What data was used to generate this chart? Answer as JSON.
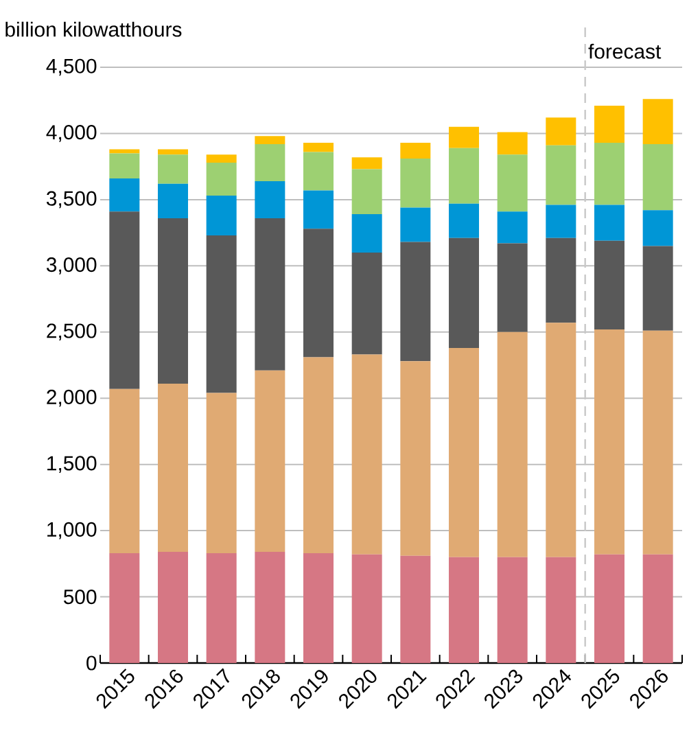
{
  "chart_data": {
    "type": "bar",
    "stacked": true,
    "ylabel": "billion kilowatthours",
    "categories": [
      "2015",
      "2016",
      "2017",
      "2018",
      "2019",
      "2020",
      "2021",
      "2022",
      "2023",
      "2024",
      "2025",
      "2026"
    ],
    "series": [
      {
        "color": "#d67784",
        "values": [
          830,
          840,
          830,
          840,
          830,
          820,
          810,
          800,
          800,
          800,
          820,
          820
        ]
      },
      {
        "color": "#e0aa73",
        "values": [
          1240,
          1270,
          1210,
          1370,
          1480,
          1510,
          1470,
          1580,
          1700,
          1770,
          1700,
          1690
        ]
      },
      {
        "color": "#595959",
        "values": [
          1340,
          1250,
          1190,
          1150,
          970,
          770,
          900,
          830,
          670,
          640,
          670,
          640
        ]
      },
      {
        "color": "#0096d6",
        "values": [
          250,
          260,
          300,
          280,
          290,
          290,
          260,
          260,
          240,
          250,
          270,
          270
        ]
      },
      {
        "color": "#9dd072",
        "values": [
          190,
          220,
          250,
          280,
          290,
          340,
          370,
          420,
          430,
          450,
          470,
          500
        ]
      },
      {
        "color": "#ffc000",
        "values": [
          30,
          40,
          60,
          60,
          70,
          90,
          120,
          160,
          170,
          210,
          280,
          340
        ]
      }
    ],
    "ylim": [
      0,
      4500
    ],
    "yticks": [
      0,
      500,
      {
        "value": 1000,
        "label": "1,000"
      },
      {
        "value": 1500,
        "label": "1,500"
      },
      {
        "value": 2000,
        "label": "2,000"
      },
      {
        "value": 2500,
        "label": "2,500"
      },
      {
        "value": 3000,
        "label": "3,000"
      },
      {
        "value": 3500,
        "label": "3,500"
      },
      {
        "value": 4000,
        "label": "4,000"
      },
      {
        "value": 4500,
        "label": "4,500"
      }
    ],
    "grid": "y",
    "ref_lines": [
      {
        "axis": "x",
        "value": "2025",
        "label": "forecast",
        "color": "#c8c8c8",
        "line_style": "dashed"
      }
    ]
  }
}
